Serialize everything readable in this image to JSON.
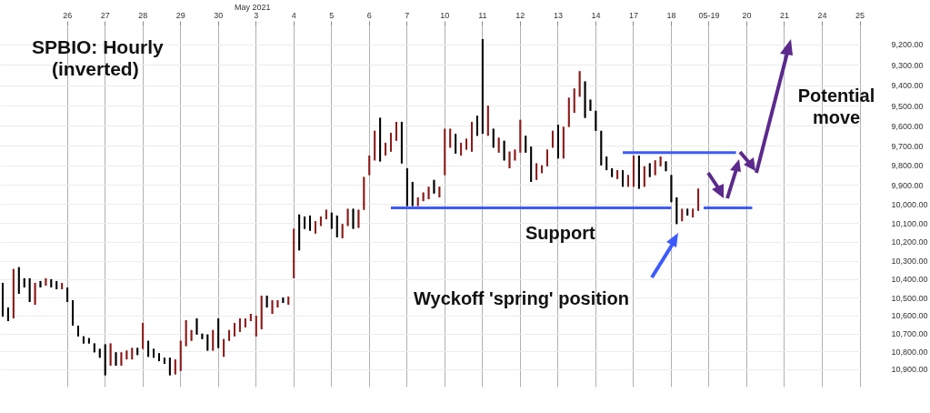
{
  "chart_data": {
    "type": "candlestick",
    "title": "SPBIO:  Hourly",
    "subtitle": "(inverted)",
    "annotations": [
      "May 2021",
      "Support",
      "Wyckoff 'spring' position",
      "Potential move"
    ],
    "categories": [
      null,
      null,
      null,
      null,
      null,
      null,
      null,
      null,
      null,
      null,
      null,
      null,
      "26",
      null,
      null,
      null,
      null,
      null,
      null,
      "27",
      null,
      null,
      null,
      null,
      null,
      null,
      "28",
      null,
      null,
      null,
      null,
      null,
      null,
      "29",
      null,
      null,
      null,
      null,
      null,
      null,
      "30",
      null,
      null,
      null,
      null,
      null,
      null,
      "3",
      null,
      null,
      null,
      null,
      null,
      null,
      "4",
      null,
      null,
      null,
      null,
      null,
      null,
      "5",
      null,
      null,
      null,
      null,
      null,
      null,
      "6",
      null,
      null,
      null,
      null,
      null,
      null,
      "7",
      null,
      null,
      null,
      null,
      null,
      null,
      "10",
      null,
      null,
      null,
      null,
      null,
      null,
      "11",
      null,
      null,
      null,
      null,
      null,
      null,
      "12",
      null,
      null,
      null,
      null,
      null,
      null,
      "13",
      null,
      null,
      null,
      null,
      null,
      null,
      "14",
      null,
      null,
      null,
      null,
      null,
      null,
      "17",
      null,
      null,
      null,
      null,
      null,
      null,
      "18",
      null,
      null,
      null,
      null,
      null,
      null,
      "05-19",
      null,
      null,
      null,
      null,
      null,
      null,
      "20",
      null,
      null,
      null,
      null,
      null,
      null,
      "21",
      null,
      null,
      null,
      null,
      null,
      null,
      "24",
      null,
      null,
      null,
      null,
      null,
      null,
      "25"
    ],
    "ohlc": [
      [
        10420,
        10605,
        10420,
        10605
      ],
      [
        10555,
        10630,
        10555,
        10630
      ],
      [
        10615,
        10615,
        10345,
        10345
      ],
      [
        10335,
        10480,
        10335,
        10480
      ],
      [
        10395,
        10445,
        10395,
        10445
      ],
      [
        10395,
        10525,
        10395,
        10525
      ],
      [
        10540,
        10540,
        10420,
        10420
      ],
      [
        10410,
        10445,
        10410,
        10445
      ],
      [
        10435,
        10435,
        10395,
        10395
      ],
      [
        10400,
        10445,
        10400,
        10445
      ],
      [
        10410,
        10455,
        10410,
        10455
      ],
      [
        10455,
        10455,
        10420,
        10420
      ],
      [
        10445,
        10525,
        10445,
        10525
      ],
      [
        10515,
        10655,
        10515,
        10655
      ],
      [
        10655,
        10715,
        10655,
        10715
      ],
      [
        10715,
        10755,
        10715,
        10755
      ],
      [
        10725,
        10755,
        10725,
        10755
      ],
      [
        10755,
        10805,
        10755,
        10805
      ],
      [
        10785,
        10835,
        10785,
        10835
      ],
      [
        10760,
        10935,
        10760,
        10935
      ],
      [
        10880,
        10880,
        10755,
        10755
      ],
      [
        10805,
        10880,
        10805,
        10880
      ],
      [
        10880,
        10880,
        10805,
        10805
      ],
      [
        10845,
        10845,
        10795,
        10795
      ],
      [
        10845,
        10845,
        10780,
        10780
      ],
      [
        10780,
        10820,
        10780,
        10820
      ],
      [
        10785,
        10785,
        10640,
        10640
      ],
      [
        10740,
        10830,
        10740,
        10830
      ],
      [
        10785,
        10835,
        10785,
        10835
      ],
      [
        10810,
        10855,
        10810,
        10855
      ],
      [
        10835,
        10870,
        10835,
        10870
      ],
      [
        10835,
        10935,
        10835,
        10935
      ],
      [
        10930,
        10930,
        10845,
        10845
      ],
      [
        10910,
        10910,
        10740,
        10740
      ],
      [
        10770,
        10770,
        10625,
        10625
      ],
      [
        10740,
        10740,
        10680,
        10680
      ],
      [
        10615,
        10705,
        10615,
        10705
      ],
      [
        10700,
        10730,
        10700,
        10730
      ],
      [
        10705,
        10795,
        10705,
        10795
      ],
      [
        10795,
        10795,
        10680,
        10680
      ],
      [
        10615,
        10780,
        10615,
        10780
      ],
      [
        10830,
        10830,
        10730,
        10730
      ],
      [
        10740,
        10740,
        10680,
        10680
      ],
      [
        10715,
        10715,
        10640,
        10640
      ],
      [
        10690,
        10690,
        10615,
        10615
      ],
      [
        10665,
        10665,
        10615,
        10615
      ],
      [
        10630,
        10630,
        10590,
        10590
      ],
      [
        10715,
        10715,
        10600,
        10600
      ],
      [
        10675,
        10675,
        10490,
        10490
      ],
      [
        10490,
        10555,
        10490,
        10555
      ],
      [
        10590,
        10590,
        10515,
        10515
      ],
      [
        10555,
        10555,
        10515,
        10515
      ],
      [
        10500,
        10530,
        10500,
        10530
      ],
      [
        10540,
        10540,
        10495,
        10495
      ],
      [
        10395,
        10395,
        10130,
        10130
      ],
      [
        10055,
        10245,
        10055,
        10245
      ],
      [
        10065,
        10130,
        10065,
        10130
      ],
      [
        10060,
        10140,
        10060,
        10140
      ],
      [
        10155,
        10155,
        10090,
        10090
      ],
      [
        10115,
        10115,
        10065,
        10065
      ],
      [
        10080,
        10080,
        10030,
        10030
      ],
      [
        10045,
        10130,
        10045,
        10130
      ],
      [
        10060,
        10175,
        10060,
        10175
      ],
      [
        10180,
        10180,
        10105,
        10105
      ],
      [
        10115,
        10115,
        10025,
        10025
      ],
      [
        10025,
        10130,
        10025,
        10130
      ],
      [
        10125,
        10125,
        10030,
        10030
      ],
      [
        10030,
        10030,
        9860,
        9860
      ],
      [
        9850,
        9850,
        9750,
        9750
      ],
      [
        9775,
        9775,
        9625,
        9625
      ],
      [
        9560,
        9780,
        9560,
        9780
      ],
      [
        9750,
        9750,
        9685,
        9685
      ],
      [
        9730,
        9730,
        9635,
        9635
      ],
      [
        9675,
        9675,
        9580,
        9580
      ],
      [
        9580,
        9790,
        9580,
        9790
      ],
      [
        9815,
        10010,
        9815,
        10010
      ],
      [
        9885,
        10010,
        9885,
        10010
      ],
      [
        10010,
        10010,
        9965,
        9965
      ],
      [
        9985,
        9985,
        9940,
        9940
      ],
      [
        9975,
        9975,
        9910,
        9910
      ],
      [
        9875,
        9945,
        9875,
        9945
      ],
      [
        9965,
        9965,
        9910,
        9910
      ],
      [
        9850,
        9850,
        9615,
        9615
      ],
      [
        9710,
        9710,
        9615,
        9615
      ],
      [
        9640,
        9740,
        9640,
        9740
      ],
      [
        9750,
        9750,
        9685,
        9685
      ],
      [
        9720,
        9720,
        9665,
        9665
      ],
      [
        9730,
        9730,
        9580,
        9580
      ],
      [
        9550,
        9650,
        9550,
        9650
      ],
      [
        9175,
        9640,
        9175,
        9640
      ],
      [
        9650,
        9650,
        9500,
        9500
      ],
      [
        9615,
        9710,
        9615,
        9710
      ],
      [
        9735,
        9735,
        9660,
        9660
      ],
      [
        9675,
        9775,
        9675,
        9775
      ],
      [
        9815,
        9815,
        9730,
        9730
      ],
      [
        9775,
        9775,
        9720,
        9720
      ],
      [
        9735,
        9735,
        9570,
        9570
      ],
      [
        9650,
        9735,
        9650,
        9735
      ],
      [
        9705,
        9885,
        9705,
        9885
      ],
      [
        9875,
        9875,
        9790,
        9790
      ],
      [
        9840,
        9840,
        9800,
        9800
      ],
      [
        9805,
        9805,
        9720,
        9720
      ],
      [
        9710,
        9710,
        9625,
        9625
      ],
      [
        9595,
        9765,
        9595,
        9765
      ],
      [
        9765,
        9765,
        9605,
        9605
      ],
      [
        9605,
        9605,
        9460,
        9460
      ],
      [
        9535,
        9535,
        9415,
        9415
      ],
      [
        9455,
        9455,
        9330,
        9330
      ],
      [
        9380,
        9560,
        9380,
        9560
      ],
      [
        9470,
        9525,
        9470,
        9525
      ],
      [
        9525,
        9625,
        9525,
        9625
      ],
      [
        9625,
        9800,
        9625,
        9800
      ],
      [
        9755,
        9825,
        9755,
        9825
      ],
      [
        9815,
        9860,
        9815,
        9860
      ],
      [
        9870,
        9870,
        9825,
        9825
      ],
      [
        9825,
        9910,
        9825,
        9910
      ],
      [
        9910,
        9910,
        9850,
        9850
      ],
      [
        9910,
        9910,
        9750,
        9750
      ],
      [
        9750,
        9920,
        9750,
        9920
      ],
      [
        9910,
        9910,
        9805,
        9805
      ],
      [
        9790,
        9860,
        9790,
        9860
      ],
      [
        9850,
        9850,
        9775,
        9775
      ],
      [
        9805,
        9805,
        9755,
        9755
      ],
      [
        9780,
        9830,
        9780,
        9830
      ],
      [
        9850,
        9990,
        9850,
        9990
      ],
      [
        9965,
        10105,
        9965,
        10105
      ],
      [
        10090,
        10090,
        10025,
        10025
      ],
      [
        10025,
        10060,
        10025,
        10060
      ],
      [
        10070,
        10070,
        10025,
        10025
      ],
      [
        10035,
        10035,
        9920,
        9920
      ],
      null,
      null,
      null,
      null,
      null,
      null,
      null,
      null,
      null,
      null,
      null,
      null,
      null,
      null,
      null,
      null,
      null,
      null,
      null,
      null,
      null,
      null,
      null,
      null,
      null,
      null,
      null,
      null,
      null,
      null
    ],
    "colors": [
      "#000000",
      "#000000",
      "#8b1a1a",
      "#000000",
      "#000000",
      "#000000",
      "#8b1a1a",
      "#000000",
      "#8b1a1a",
      "#000000",
      "#000000",
      "#8b1a1a",
      "#000000",
      "#000000",
      "#000000",
      "#000000",
      "#000000",
      "#000000",
      "#000000",
      "#000000",
      "#8b1a1a",
      "#000000",
      "#8b1a1a",
      "#8b1a1a",
      "#8b1a1a",
      "#000000",
      "#8b1a1a",
      "#000000",
      "#000000",
      "#000000",
      "#000000",
      "#000000",
      "#8b1a1a",
      "#8b1a1a",
      "#8b1a1a",
      "#8b1a1a",
      "#000000",
      "#000000",
      "#000000",
      "#8b1a1a",
      "#000000",
      "#8b1a1a",
      "#8b1a1a",
      "#8b1a1a",
      "#8b1a1a",
      "#8b1a1a",
      "#8b1a1a",
      "#8b1a1a",
      "#8b1a1a",
      "#000000",
      "#8b1a1a",
      "#8b1a1a",
      "#000000",
      "#8b1a1a",
      "#8b1a1a",
      "#000000",
      "#000000",
      "#000000",
      "#8b1a1a",
      "#8b1a1a",
      "#8b1a1a",
      "#000000",
      "#000000",
      "#8b1a1a",
      "#8b1a1a",
      "#000000",
      "#8b1a1a",
      "#8b1a1a",
      "#8b1a1a",
      "#8b1a1a",
      "#000000",
      "#8b1a1a",
      "#8b1a1a",
      "#8b1a1a",
      "#000000",
      "#000000",
      "#000000",
      "#8b1a1a",
      "#8b1a1a",
      "#8b1a1a",
      "#000000",
      "#8b1a1a",
      "#8b1a1a",
      "#8b1a1a",
      "#000000",
      "#8b1a1a",
      "#8b1a1a",
      "#8b1a1a",
      "#000000",
      "#000000",
      "#8b1a1a",
      "#000000",
      "#8b1a1a",
      "#000000",
      "#8b1a1a",
      "#8b1a1a",
      "#8b1a1a",
      "#000000",
      "#000000",
      "#8b1a1a",
      "#8b1a1a",
      "#8b1a1a",
      "#8b1a1a",
      "#000000",
      "#8b1a1a",
      "#8b1a1a",
      "#8b1a1a",
      "#8b1a1a",
      "#000000",
      "#000000",
      "#000000",
      "#000000",
      "#000000",
      "#000000",
      "#8b1a1a",
      "#000000",
      "#8b1a1a",
      "#8b1a1a",
      "#000000",
      "#8b1a1a",
      "#000000",
      "#8b1a1a",
      "#8b1a1a",
      "#000000",
      "#000000",
      "#000000",
      "#8b1a1a",
      "#000000",
      "#8b1a1a",
      "#8b1a1a",
      null,
      null,
      null,
      null,
      null,
      null,
      null,
      null,
      null,
      null,
      null,
      null,
      null,
      null,
      null,
      null,
      null,
      null,
      null,
      null,
      null,
      null,
      null,
      null,
      null,
      null,
      null,
      null,
      null,
      null
    ],
    "series": [
      {
        "type": "line",
        "color": "#3d5afe",
        "values": [
          null,
          null,
          null,
          null,
          null,
          null,
          null,
          null,
          null,
          null,
          null,
          null,
          null,
          null,
          null,
          null,
          null,
          null,
          null,
          null,
          null,
          null,
          null,
          null,
          null,
          null,
          null,
          null,
          null,
          null,
          null,
          null,
          null,
          null,
          null,
          null,
          null,
          null,
          null,
          null,
          null,
          null,
          null,
          null,
          null,
          null,
          null,
          null,
          null,
          null,
          null,
          null,
          null,
          null,
          null,
          null,
          null,
          null,
          null,
          null,
          null,
          null,
          null,
          null,
          null,
          null,
          null,
          null,
          null,
          null,
          null,
          null,
          10020,
          10020,
          10020,
          10020,
          10020,
          10020,
          10020,
          10020,
          10020,
          10020,
          10020,
          10020,
          10020,
          10020,
          10020,
          10020,
          10020,
          10020,
          10020,
          10020,
          10020,
          10020,
          10020,
          10020,
          10020,
          10020,
          10020,
          10020,
          10020,
          10020,
          10020,
          10020,
          10020,
          10020,
          10020,
          10020,
          10020,
          10020,
          10020,
          10020,
          10020,
          10020,
          10020,
          10020,
          10020,
          10020,
          10020,
          10020,
          10020,
          10020,
          10020,
          10020,
          10020,
          null,
          null,
          null,
          null,
          null,
          10020,
          10020,
          10020,
          10020,
          10020,
          10020,
          10020,
          10020,
          10020,
          10020,
          null,
          null,
          null,
          null,
          null,
          null,
          null,
          null,
          null,
          null,
          null,
          null,
          null,
          null,
          null,
          null,
          null,
          null,
          null,
          null
        ]
      },
      {
        "type": "line",
        "color": "#3d5afe",
        "values": [
          null,
          null,
          null,
          null,
          null,
          null,
          null,
          null,
          null,
          null,
          null,
          null,
          null,
          null,
          null,
          null,
          null,
          null,
          null,
          null,
          null,
          null,
          null,
          null,
          null,
          null,
          null,
          null,
          null,
          null,
          null,
          null,
          null,
          null,
          null,
          null,
          null,
          null,
          null,
          null,
          null,
          null,
          null,
          null,
          null,
          null,
          null,
          null,
          null,
          null,
          null,
          null,
          null,
          null,
          null,
          null,
          null,
          null,
          null,
          null,
          null,
          null,
          null,
          null,
          null,
          null,
          null,
          null,
          null,
          null,
          null,
          null,
          null,
          null,
          null,
          null,
          null,
          null,
          null,
          null,
          null,
          null,
          null,
          null,
          null,
          null,
          null,
          null,
          null,
          null,
          null,
          null,
          null,
          null,
          null,
          null,
          null,
          null,
          null,
          null,
          null,
          null,
          null,
          null,
          null,
          null,
          null,
          null,
          null,
          null,
          null,
          null,
          null,
          null,
          null,
          9735,
          9735,
          9735,
          9735,
          9735,
          9735,
          9735,
          9735,
          9735,
          9735,
          9735,
          9735,
          9735,
          9735,
          9735,
          9735,
          9735,
          9735,
          9735,
          9735,
          9735,
          9735,
          null,
          null,
          null,
          null,
          null,
          null,
          null,
          null,
          null,
          null,
          null,
          null,
          null,
          null,
          null,
          null,
          null,
          null,
          null,
          null,
          null,
          null,
          null
        ]
      }
    ],
    "ylim": [
      11000,
      9110
    ],
    "log": true,
    "yticks": [
      {
        "value": 9200,
        "label": "9,200.00"
      },
      {
        "value": 9300,
        "label": "9,300.00"
      },
      {
        "value": 9400,
        "label": "9,400.00"
      },
      {
        "value": 9500,
        "label": "9,500.00"
      },
      {
        "value": 9600,
        "label": "9,600.00"
      },
      {
        "value": 9700,
        "label": "9,700.00"
      },
      {
        "value": 9800,
        "label": "9,800.00"
      },
      {
        "value": 9900,
        "label": "9,900.00"
      },
      {
        "value": 10000,
        "label": "10,000.00"
      },
      {
        "value": 10100,
        "label": "10,100.00"
      },
      {
        "value": 10200,
        "label": "10,200.00"
      },
      {
        "value": 10300,
        "label": "10,300.00"
      },
      {
        "value": 10400,
        "label": "10,400.00"
      },
      {
        "value": 10500,
        "label": "10,500.00"
      },
      {
        "value": 10600,
        "label": "10,600.00"
      },
      {
        "value": 10700,
        "label": "10,700.00"
      },
      {
        "value": 10800,
        "label": "10,800.00"
      },
      {
        "value": 10900,
        "label": "10,900.00"
      }
    ],
    "grid": true
  }
}
